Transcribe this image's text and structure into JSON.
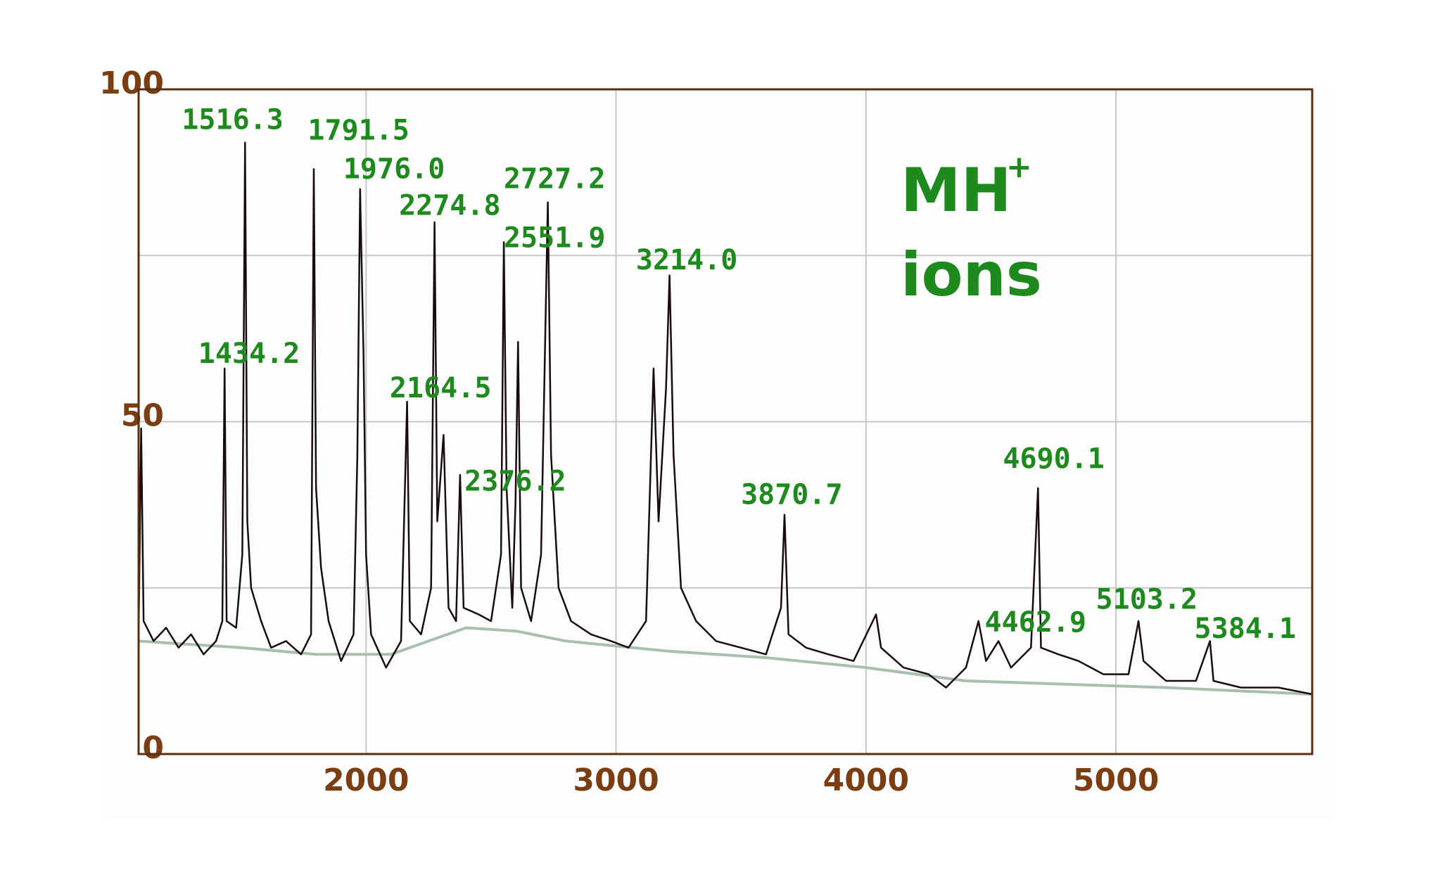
{
  "chart_data": {
    "type": "line",
    "xlim": [
      1090,
      5785
    ],
    "ylim": [
      0,
      100
    ],
    "xticks": [
      2000,
      3000,
      4000,
      5000
    ],
    "yticks": [
      0,
      50,
      100
    ],
    "ygrid": [
      25,
      50,
      75,
      100
    ],
    "grid": true,
    "series": [
      {
        "color": "#1a0c0c",
        "x": [
          1090,
          1100,
          1110,
          1150,
          1200,
          1250,
          1300,
          1350,
          1400,
          1425,
          1434,
          1442,
          1480,
          1505,
          1516,
          1525,
          1540,
          1580,
          1620,
          1680,
          1740,
          1780,
          1791,
          1800,
          1820,
          1850,
          1900,
          1950,
          1965,
          1976,
          1990,
          2000,
          2020,
          2080,
          2140,
          2164,
          2175,
          2220,
          2260,
          2274,
          2285,
          2310,
          2330,
          2360,
          2376,
          2390,
          2450,
          2500,
          2540,
          2551,
          2562,
          2585,
          2598,
          2608,
          2620,
          2660,
          2700,
          2727,
          2740,
          2770,
          2820,
          2900,
          2980,
          3050,
          3120,
          3150,
          3170,
          3200,
          3214,
          3230,
          3260,
          3320,
          3400,
          3500,
          3600,
          3660,
          3674,
          3690,
          3760,
          3850,
          3950,
          4040,
          4060,
          4150,
          4250,
          4320,
          4400,
          4450,
          4480,
          4530,
          4580,
          4660,
          4688,
          4700,
          4770,
          4850,
          4950,
          5050,
          5090,
          5110,
          5200,
          5320,
          5376,
          5390,
          5500,
          5650,
          5785
        ],
        "values": [
          18,
          49,
          20,
          17,
          19,
          16,
          18,
          15,
          17,
          20,
          58,
          20,
          19,
          30,
          92,
          35,
          25,
          20,
          16,
          17,
          15,
          18,
          88,
          40,
          28,
          20,
          14,
          18,
          45,
          85,
          60,
          30,
          18,
          13,
          17,
          53,
          20,
          18,
          25,
          80,
          35,
          48,
          22,
          20,
          42,
          22,
          21,
          20,
          30,
          77,
          40,
          22,
          38,
          62,
          25,
          20,
          30,
          83,
          45,
          25,
          20,
          18,
          17,
          16,
          20,
          58,
          35,
          55,
          72,
          45,
          25,
          20,
          17,
          16,
          15,
          22,
          36,
          18,
          16,
          15,
          14,
          21,
          16,
          13,
          12,
          10,
          13,
          20,
          14,
          17,
          13,
          16,
          40,
          16,
          15,
          14,
          12,
          12,
          20,
          14,
          11,
          11,
          17,
          11,
          10,
          10,
          9
        ]
      },
      {
        "color": "#a9bfae",
        "x": [
          1090,
          1500,
          1800,
          2100,
          2250,
          2400,
          2600,
          2800,
          3200,
          3600,
          4000,
          4400,
          4800,
          5200,
          5785
        ],
        "values": [
          17,
          16,
          15,
          15,
          17,
          19,
          18.5,
          17,
          15.5,
          14.5,
          13,
          11,
          10.5,
          10,
          9
        ]
      }
    ],
    "annotations": [
      {
        "label": "1516.3",
        "x": 1466,
        "y": 95.2
      },
      {
        "label": "1791.5",
        "x": 1970,
        "y": 93.6
      },
      {
        "label": "1976.0",
        "x": 2112,
        "y": 87.8
      },
      {
        "label": "2274.8",
        "x": 2335,
        "y": 82.3
      },
      {
        "label": "2727.2",
        "x": 2754,
        "y": 86.3
      },
      {
        "label": "2551.9",
        "x": 2754,
        "y": 77.4
      },
      {
        "label": "3214.0",
        "x": 3283,
        "y": 74.1
      },
      {
        "label": "1434.2",
        "x": 1532,
        "y": 60
      },
      {
        "label": "2164.5",
        "x": 2298,
        "y": 54.8
      },
      {
        "label": "2376.2",
        "x": 2597,
        "y": 40.8
      },
      {
        "label": "3870.7",
        "x": 3703,
        "y": 38.8
      },
      {
        "label": "4690.1",
        "x": 4751,
        "y": 44.2
      },
      {
        "label": "4462.9",
        "x": 4678,
        "y": 19.6
      },
      {
        "label": "5103.2",
        "x": 5123,
        "y": 23
      },
      {
        "label": "5384.1",
        "x": 5517,
        "y": 18.6
      }
    ],
    "note": {
      "main": "MH",
      "superscript": "+",
      "line2": "ions"
    }
  }
}
